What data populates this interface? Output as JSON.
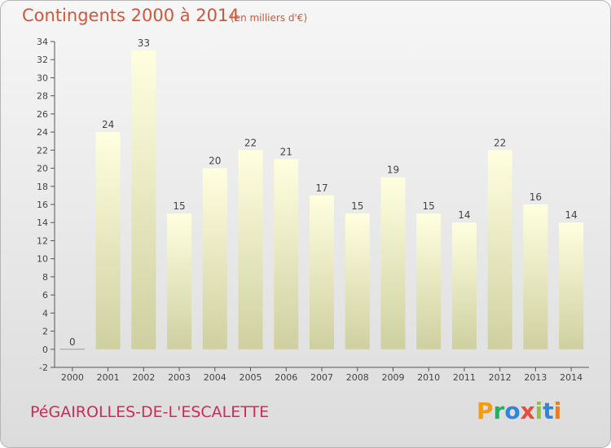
{
  "title": "Contingents 2000 à 2014",
  "subtitle": "(en milliers d'€)",
  "commune": "PéGAIROLLES-DE-L'ESCALETTE",
  "logo": {
    "letters": [
      "P",
      "r",
      "o",
      "x",
      "i",
      "t",
      "i"
    ],
    "colors": [
      "#f39c12",
      "#27ae60",
      "#2e86de",
      "#e74c3c",
      "#8cc63f",
      "#2e86de",
      "#e67e22"
    ]
  },
  "colors": {
    "title": "#d2563a",
    "commune": "#cf2a5a",
    "bar_top": "#ffffe0",
    "bar_bottom": "#cfd0a0",
    "axis": "#555555"
  },
  "chart_data": {
    "type": "bar",
    "categories": [
      "2000",
      "2001",
      "2002",
      "2003",
      "2004",
      "2005",
      "2006",
      "2007",
      "2008",
      "2009",
      "2010",
      "2011",
      "2012",
      "2013",
      "2014"
    ],
    "values": [
      0,
      24,
      33,
      15,
      20,
      22,
      21,
      17,
      15,
      19,
      15,
      14,
      22,
      16,
      14
    ],
    "ylim": [
      -2,
      34
    ],
    "yticks": [
      -2,
      0,
      2,
      4,
      6,
      8,
      10,
      12,
      14,
      16,
      18,
      20,
      22,
      24,
      26,
      28,
      30,
      32,
      34
    ],
    "grid": false,
    "legend": "none"
  }
}
